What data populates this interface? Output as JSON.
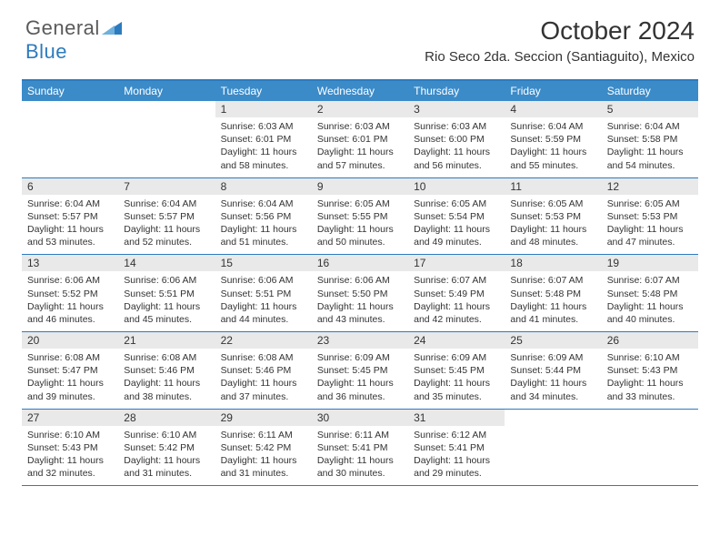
{
  "brand": {
    "name_a": "General",
    "name_b": "Blue",
    "icon_color": "#2d7bbf"
  },
  "title": "October 2024",
  "location": "Rio Seco 2da. Seccion (Santiaguito), Mexico",
  "colors": {
    "header_bg": "#3b8bc9",
    "header_text": "#ffffff",
    "border": "#2d7bbf",
    "daynum_bg": "#e9e9e9",
    "text": "#333333",
    "background": "#ffffff"
  },
  "typography": {
    "title_fontsize": 28,
    "location_fontsize": 15,
    "dayhead_fontsize": 12,
    "cell_fontsize": 10.5
  },
  "day_headers": [
    "Sunday",
    "Monday",
    "Tuesday",
    "Wednesday",
    "Thursday",
    "Friday",
    "Saturday"
  ],
  "weeks": [
    [
      {
        "empty": true
      },
      {
        "empty": true
      },
      {
        "day": "1",
        "sunrise": "Sunrise: 6:03 AM",
        "sunset": "Sunset: 6:01 PM",
        "dl1": "Daylight: 11 hours",
        "dl2": "and 58 minutes."
      },
      {
        "day": "2",
        "sunrise": "Sunrise: 6:03 AM",
        "sunset": "Sunset: 6:01 PM",
        "dl1": "Daylight: 11 hours",
        "dl2": "and 57 minutes."
      },
      {
        "day": "3",
        "sunrise": "Sunrise: 6:03 AM",
        "sunset": "Sunset: 6:00 PM",
        "dl1": "Daylight: 11 hours",
        "dl2": "and 56 minutes."
      },
      {
        "day": "4",
        "sunrise": "Sunrise: 6:04 AM",
        "sunset": "Sunset: 5:59 PM",
        "dl1": "Daylight: 11 hours",
        "dl2": "and 55 minutes."
      },
      {
        "day": "5",
        "sunrise": "Sunrise: 6:04 AM",
        "sunset": "Sunset: 5:58 PM",
        "dl1": "Daylight: 11 hours",
        "dl2": "and 54 minutes."
      }
    ],
    [
      {
        "day": "6",
        "sunrise": "Sunrise: 6:04 AM",
        "sunset": "Sunset: 5:57 PM",
        "dl1": "Daylight: 11 hours",
        "dl2": "and 53 minutes."
      },
      {
        "day": "7",
        "sunrise": "Sunrise: 6:04 AM",
        "sunset": "Sunset: 5:57 PM",
        "dl1": "Daylight: 11 hours",
        "dl2": "and 52 minutes."
      },
      {
        "day": "8",
        "sunrise": "Sunrise: 6:04 AM",
        "sunset": "Sunset: 5:56 PM",
        "dl1": "Daylight: 11 hours",
        "dl2": "and 51 minutes."
      },
      {
        "day": "9",
        "sunrise": "Sunrise: 6:05 AM",
        "sunset": "Sunset: 5:55 PM",
        "dl1": "Daylight: 11 hours",
        "dl2": "and 50 minutes."
      },
      {
        "day": "10",
        "sunrise": "Sunrise: 6:05 AM",
        "sunset": "Sunset: 5:54 PM",
        "dl1": "Daylight: 11 hours",
        "dl2": "and 49 minutes."
      },
      {
        "day": "11",
        "sunrise": "Sunrise: 6:05 AM",
        "sunset": "Sunset: 5:53 PM",
        "dl1": "Daylight: 11 hours",
        "dl2": "and 48 minutes."
      },
      {
        "day": "12",
        "sunrise": "Sunrise: 6:05 AM",
        "sunset": "Sunset: 5:53 PM",
        "dl1": "Daylight: 11 hours",
        "dl2": "and 47 minutes."
      }
    ],
    [
      {
        "day": "13",
        "sunrise": "Sunrise: 6:06 AM",
        "sunset": "Sunset: 5:52 PM",
        "dl1": "Daylight: 11 hours",
        "dl2": "and 46 minutes."
      },
      {
        "day": "14",
        "sunrise": "Sunrise: 6:06 AM",
        "sunset": "Sunset: 5:51 PM",
        "dl1": "Daylight: 11 hours",
        "dl2": "and 45 minutes."
      },
      {
        "day": "15",
        "sunrise": "Sunrise: 6:06 AM",
        "sunset": "Sunset: 5:51 PM",
        "dl1": "Daylight: 11 hours",
        "dl2": "and 44 minutes."
      },
      {
        "day": "16",
        "sunrise": "Sunrise: 6:06 AM",
        "sunset": "Sunset: 5:50 PM",
        "dl1": "Daylight: 11 hours",
        "dl2": "and 43 minutes."
      },
      {
        "day": "17",
        "sunrise": "Sunrise: 6:07 AM",
        "sunset": "Sunset: 5:49 PM",
        "dl1": "Daylight: 11 hours",
        "dl2": "and 42 minutes."
      },
      {
        "day": "18",
        "sunrise": "Sunrise: 6:07 AM",
        "sunset": "Sunset: 5:48 PM",
        "dl1": "Daylight: 11 hours",
        "dl2": "and 41 minutes."
      },
      {
        "day": "19",
        "sunrise": "Sunrise: 6:07 AM",
        "sunset": "Sunset: 5:48 PM",
        "dl1": "Daylight: 11 hours",
        "dl2": "and 40 minutes."
      }
    ],
    [
      {
        "day": "20",
        "sunrise": "Sunrise: 6:08 AM",
        "sunset": "Sunset: 5:47 PM",
        "dl1": "Daylight: 11 hours",
        "dl2": "and 39 minutes."
      },
      {
        "day": "21",
        "sunrise": "Sunrise: 6:08 AM",
        "sunset": "Sunset: 5:46 PM",
        "dl1": "Daylight: 11 hours",
        "dl2": "and 38 minutes."
      },
      {
        "day": "22",
        "sunrise": "Sunrise: 6:08 AM",
        "sunset": "Sunset: 5:46 PM",
        "dl1": "Daylight: 11 hours",
        "dl2": "and 37 minutes."
      },
      {
        "day": "23",
        "sunrise": "Sunrise: 6:09 AM",
        "sunset": "Sunset: 5:45 PM",
        "dl1": "Daylight: 11 hours",
        "dl2": "and 36 minutes."
      },
      {
        "day": "24",
        "sunrise": "Sunrise: 6:09 AM",
        "sunset": "Sunset: 5:45 PM",
        "dl1": "Daylight: 11 hours",
        "dl2": "and 35 minutes."
      },
      {
        "day": "25",
        "sunrise": "Sunrise: 6:09 AM",
        "sunset": "Sunset: 5:44 PM",
        "dl1": "Daylight: 11 hours",
        "dl2": "and 34 minutes."
      },
      {
        "day": "26",
        "sunrise": "Sunrise: 6:10 AM",
        "sunset": "Sunset: 5:43 PM",
        "dl1": "Daylight: 11 hours",
        "dl2": "and 33 minutes."
      }
    ],
    [
      {
        "day": "27",
        "sunrise": "Sunrise: 6:10 AM",
        "sunset": "Sunset: 5:43 PM",
        "dl1": "Daylight: 11 hours",
        "dl2": "and 32 minutes."
      },
      {
        "day": "28",
        "sunrise": "Sunrise: 6:10 AM",
        "sunset": "Sunset: 5:42 PM",
        "dl1": "Daylight: 11 hours",
        "dl2": "and 31 minutes."
      },
      {
        "day": "29",
        "sunrise": "Sunrise: 6:11 AM",
        "sunset": "Sunset: 5:42 PM",
        "dl1": "Daylight: 11 hours",
        "dl2": "and 31 minutes."
      },
      {
        "day": "30",
        "sunrise": "Sunrise: 6:11 AM",
        "sunset": "Sunset: 5:41 PM",
        "dl1": "Daylight: 11 hours",
        "dl2": "and 30 minutes."
      },
      {
        "day": "31",
        "sunrise": "Sunrise: 6:12 AM",
        "sunset": "Sunset: 5:41 PM",
        "dl1": "Daylight: 11 hours",
        "dl2": "and 29 minutes."
      },
      {
        "empty": true
      },
      {
        "empty": true
      }
    ]
  ]
}
